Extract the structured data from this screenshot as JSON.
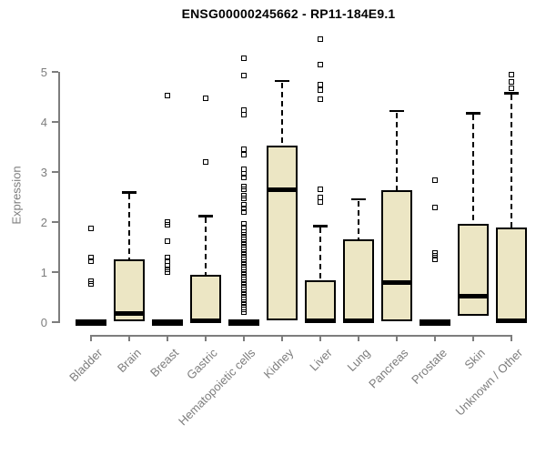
{
  "title": "ENSG00000245662 - RP11-184E9.1",
  "colors": {
    "box_fill": "#ece6c4",
    "box_line": "#000000",
    "axis_gray": "#7d7d7d",
    "title_color": "#000000",
    "background": "#ffffff"
  },
  "chart_data": {
    "type": "boxplot",
    "title": "ENSG00000245662 - RP11-184E9.1",
    "xlabel": "",
    "ylabel": "Expression",
    "ylim": [
      0,
      5.8
    ],
    "yticks": [
      0,
      1,
      2,
      3,
      4,
      5
    ],
    "grid": false,
    "legend": null,
    "categories": [
      "Bladder",
      "Brain",
      "Breast",
      "Gastric",
      "Hematopoietic cells",
      "Kidney",
      "Liver",
      "Lung",
      "Pancreas",
      "Prostate",
      "Skin",
      "Unknown / Other"
    ],
    "boxes": [
      {
        "category": "Bladder",
        "q1": 0,
        "median": 0,
        "q3": 0,
        "whisker_low": 0,
        "whisker_high": 0,
        "outliers": [
          0.76,
          0.82,
          1.22,
          1.3,
          1.88
        ]
      },
      {
        "category": "Brain",
        "q1": 0.02,
        "median": 0.18,
        "q3": 1.25,
        "whisker_low": 0.02,
        "whisker_high": 2.6,
        "outliers": []
      },
      {
        "category": "Breast",
        "q1": 0,
        "median": 0,
        "q3": 0,
        "whisker_low": 0,
        "whisker_high": 0,
        "outliers": [
          1.0,
          1.05,
          1.12,
          1.22,
          1.3,
          1.62,
          1.95,
          2.0,
          4.53
        ]
      },
      {
        "category": "Gastric",
        "q1": 0,
        "median": 0.03,
        "q3": 0.95,
        "whisker_low": 0,
        "whisker_high": 2.12,
        "outliers": [
          3.2,
          4.47
        ]
      },
      {
        "category": "Hematopoietic cells",
        "q1": 0,
        "median": 0,
        "q3": 0,
        "whisker_low": 0,
        "whisker_high": 0,
        "outliers": [
          0.2,
          0.25,
          0.3,
          0.35,
          0.4,
          0.45,
          0.5,
          0.55,
          0.6,
          0.65,
          0.7,
          0.75,
          0.8,
          0.85,
          0.9,
          0.95,
          1.0,
          1.05,
          1.1,
          1.15,
          1.2,
          1.25,
          1.3,
          1.35,
          1.4,
          1.45,
          1.5,
          1.55,
          1.6,
          1.65,
          1.7,
          1.75,
          1.8,
          1.9,
          1.96,
          2.2,
          2.28,
          2.35,
          2.47,
          2.53,
          2.65,
          2.71,
          2.9,
          2.97,
          3.05,
          3.35,
          3.45,
          4.15,
          4.24,
          4.92,
          5.27
        ]
      },
      {
        "category": "Kidney",
        "q1": 0.04,
        "median": 2.65,
        "q3": 3.52,
        "whisker_low": 0.04,
        "whisker_high": 4.82,
        "outliers": []
      },
      {
        "category": "Liver",
        "q1": 0,
        "median": 0.03,
        "q3": 0.83,
        "whisker_low": 0,
        "whisker_high": 1.92,
        "outliers": [
          2.4,
          2.5,
          2.65,
          4.45,
          4.63,
          4.75,
          5.15,
          5.66
        ]
      },
      {
        "category": "Lung",
        "q1": 0,
        "median": 0.03,
        "q3": 1.66,
        "whisker_low": 0,
        "whisker_high": 2.46,
        "outliers": []
      },
      {
        "category": "Pancreas",
        "q1": 0.02,
        "median": 0.8,
        "q3": 2.63,
        "whisker_low": 0.02,
        "whisker_high": 4.22,
        "outliers": []
      },
      {
        "category": "Prostate",
        "q1": 0,
        "median": 0,
        "q3": 0,
        "whisker_low": 0,
        "whisker_high": 0,
        "outliers": [
          1.26,
          1.32,
          1.38,
          2.3,
          2.83
        ]
      },
      {
        "category": "Skin",
        "q1": 0.12,
        "median": 0.51,
        "q3": 1.96,
        "whisker_low": 0.12,
        "whisker_high": 4.18,
        "outliers": []
      },
      {
        "category": "Unknown / Other",
        "q1": 0,
        "median": 0.03,
        "q3": 1.89,
        "whisker_low": 0,
        "whisker_high": 4.58,
        "outliers": [
          4.67,
          4.8,
          4.95
        ]
      }
    ]
  }
}
